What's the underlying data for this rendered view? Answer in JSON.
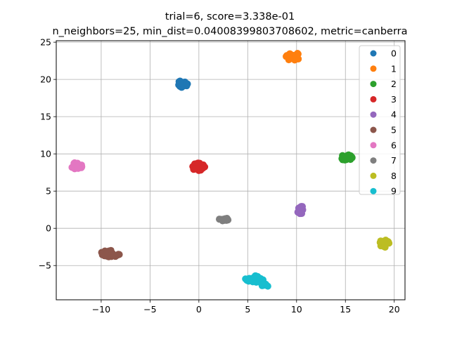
{
  "chart_data": {
    "type": "scatter",
    "title_lines": [
      "trial=6, score=3.338e-01",
      "n_neighbors=25, min_dist=0.04008399803708602, metric=canberra"
    ],
    "xlabel": "",
    "ylabel": "",
    "xlim": [
      -14.6,
      21.1
    ],
    "ylim": [
      -9.6,
      25.2
    ],
    "xticks": [
      -10,
      -5,
      0,
      5,
      10,
      15,
      20
    ],
    "xtick_labels": [
      "−10",
      "−5",
      "0",
      "5",
      "10",
      "15",
      "20"
    ],
    "yticks": [
      -5,
      0,
      5,
      10,
      15,
      20,
      25
    ],
    "ytick_labels": [
      "−5",
      "0",
      "5",
      "10",
      "15",
      "20",
      "25"
    ],
    "grid": true,
    "legend_placement": "top-right",
    "series": [
      {
        "name": "0",
        "color": "#1f77b4",
        "clusters": [
          {
            "cx": -1.7,
            "cy": 19.4,
            "rx": 0.55,
            "ry": 0.5,
            "n": 24
          }
        ]
      },
      {
        "name": "1",
        "color": "#ff7f0e",
        "clusters": [
          {
            "cx": 9.6,
            "cy": 23.1,
            "rx": 0.8,
            "ry": 0.55,
            "n": 30
          }
        ]
      },
      {
        "name": "2",
        "color": "#2ca02c",
        "clusters": [
          {
            "cx": 15.1,
            "cy": 9.5,
            "rx": 0.6,
            "ry": 0.4,
            "n": 20
          }
        ]
      },
      {
        "name": "3",
        "color": "#d62728",
        "clusters": [
          {
            "cx": -0.1,
            "cy": 8.3,
            "rx": 0.7,
            "ry": 0.55,
            "n": 28
          }
        ]
      },
      {
        "name": "4",
        "color": "#9467bd",
        "clusters": [
          {
            "cx": 10.4,
            "cy": 2.5,
            "rx": 0.35,
            "ry": 0.55,
            "n": 18
          }
        ]
      },
      {
        "name": "5",
        "color": "#8c564b",
        "clusters": [
          {
            "cx": -9.1,
            "cy": -3.4,
            "rx": 1.0,
            "ry": 0.45,
            "n": 34
          }
        ]
      },
      {
        "name": "6",
        "color": "#e377c2",
        "clusters": [
          {
            "cx": -12.5,
            "cy": 8.4,
            "rx": 0.65,
            "ry": 0.45,
            "n": 26
          }
        ]
      },
      {
        "name": "7",
        "color": "#7f7f7f",
        "clusters": [
          {
            "cx": 2.5,
            "cy": 1.2,
            "rx": 0.55,
            "ry": 0.2,
            "n": 16
          }
        ]
      },
      {
        "name": "8",
        "color": "#bcbd22",
        "clusters": [
          {
            "cx": 19.0,
            "cy": -2.0,
            "rx": 0.5,
            "ry": 0.55,
            "n": 22
          }
        ]
      },
      {
        "name": "9",
        "color": "#17becf",
        "clusters": [
          {
            "cx": 5.8,
            "cy": -6.8,
            "rx": 1.1,
            "ry": 0.45,
            "n": 32
          },
          {
            "cx": 6.8,
            "cy": -7.6,
            "rx": 0.45,
            "ry": 0.3,
            "n": 10
          }
        ]
      }
    ]
  }
}
